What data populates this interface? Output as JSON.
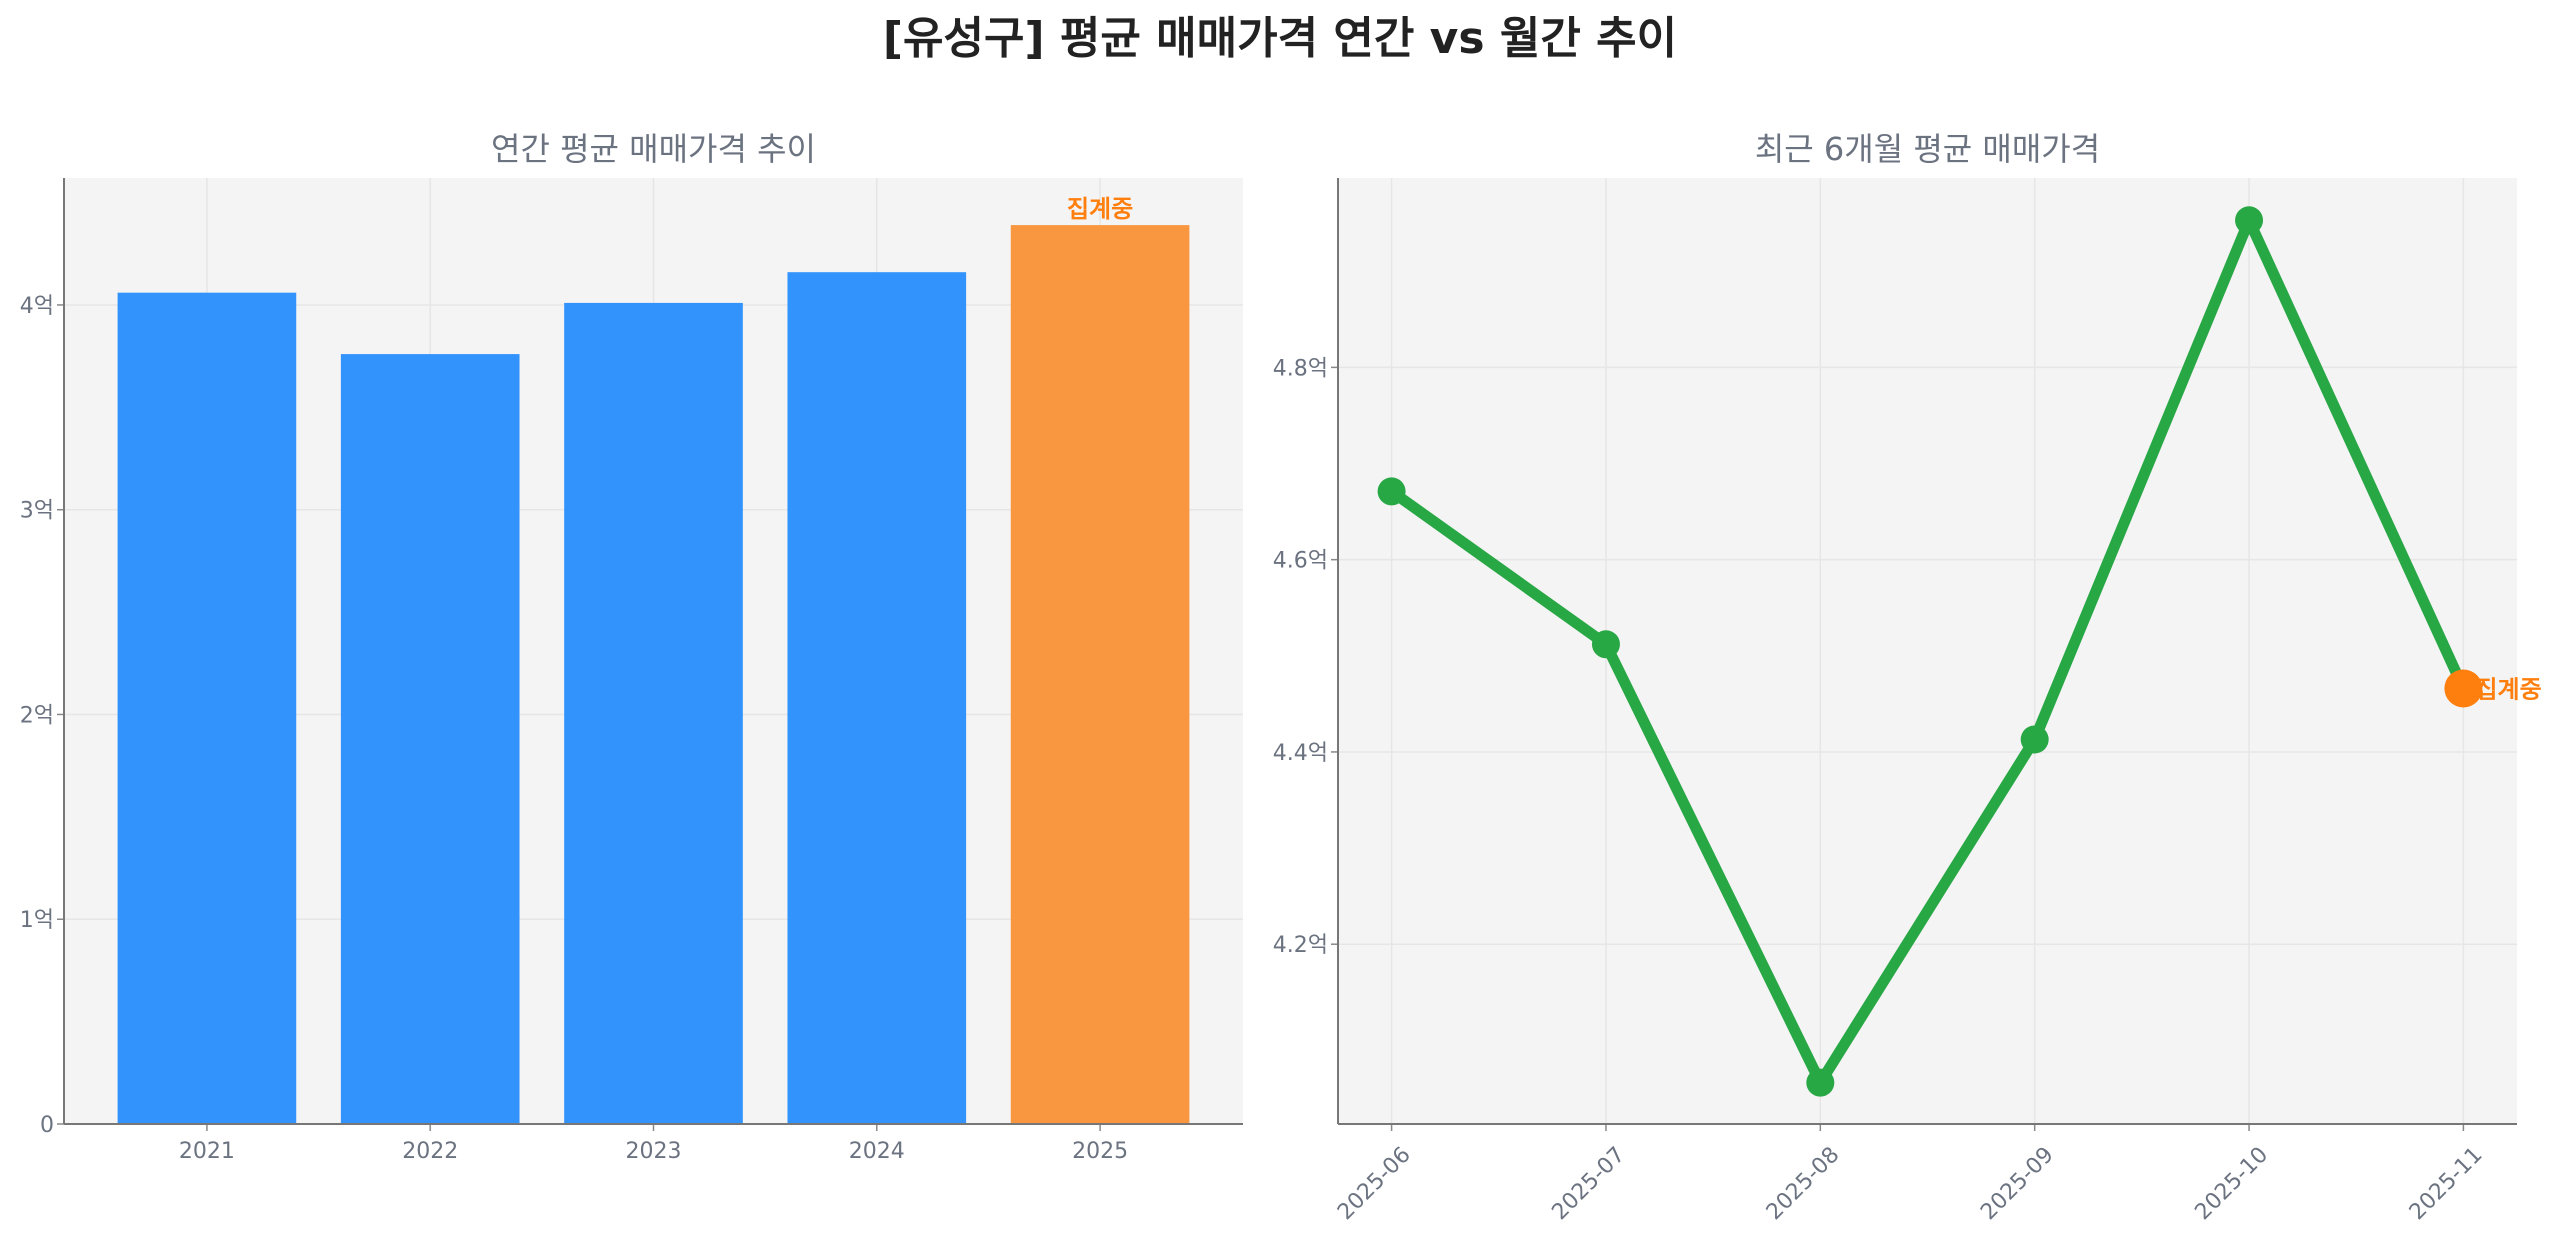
{
  "title": "[유성구] 평균 매매가격 연간 vs 월간 추이",
  "chart_data": [
    {
      "type": "bar",
      "title": "연간 평균 매매가격 추이",
      "categories": [
        "2021",
        "2022",
        "2023",
        "2024",
        "2025"
      ],
      "values": [
        4.06,
        3.76,
        4.01,
        4.16,
        4.39
      ],
      "unit": "억",
      "ylim": [
        0,
        4.62
      ],
      "yticks": [
        0,
        1,
        2,
        3,
        4
      ],
      "ytick_labels": [
        "0",
        "1억",
        "2억",
        "3억",
        "4억"
      ],
      "grid": true,
      "colors": [
        "#3193fb",
        "#3193fb",
        "#3193fb",
        "#3193fb",
        "#f99740"
      ],
      "annotations": [
        {
          "category": "2025",
          "text": "집계중",
          "color": "#ff7f0e"
        }
      ]
    },
    {
      "type": "line",
      "title": "최근 6개월 평균 매매가격",
      "x": [
        "2025-06",
        "2025-07",
        "2025-08",
        "2025-09",
        "2025-10",
        "2025-11"
      ],
      "values": [
        4.671,
        4.512,
        4.056,
        4.413,
        4.953,
        4.466
      ],
      "unit": "억",
      "ylim": [
        4.013,
        4.997
      ],
      "yticks": [
        4.2,
        4.4,
        4.6,
        4.8
      ],
      "ytick_labels": [
        "4.2억",
        "4.4억",
        "4.6억",
        "4.8억"
      ],
      "grid": true,
      "line_color": "#28a745",
      "highlight_color": "#ff7f0e",
      "annotations": [
        {
          "x": "2025-11",
          "text": "집계중",
          "color": "#ff7f0e"
        }
      ]
    }
  ]
}
